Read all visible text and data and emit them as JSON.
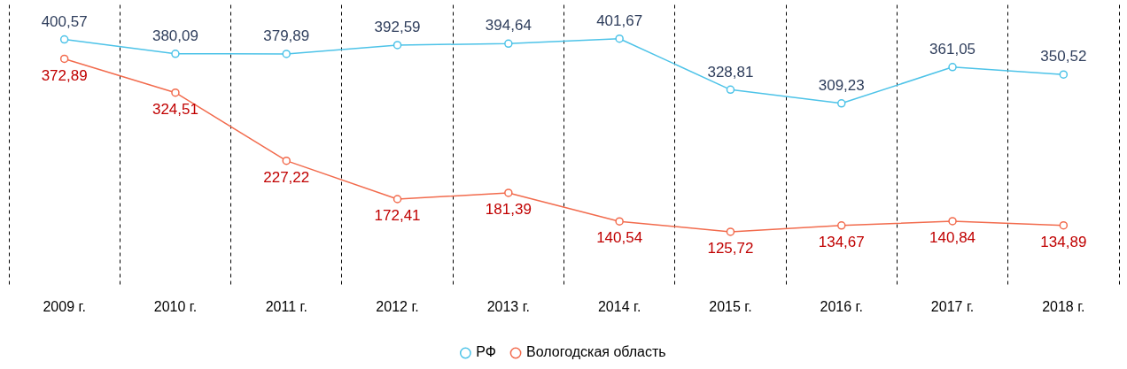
{
  "chart_data": {
    "type": "line",
    "categories": [
      "2009 г.",
      "2010 г.",
      "2011 г.",
      "2012 г.",
      "2013 г.",
      "2014 г.",
      "2015 г.",
      "2016 г.",
      "2017 г.",
      "2018 г."
    ],
    "series": [
      {
        "name": "РФ",
        "color": "#4dc3e8",
        "values": [
          400.57,
          380.09,
          379.89,
          392.59,
          394.64,
          401.67,
          328.81,
          309.23,
          361.05,
          350.52
        ],
        "value_labels": [
          "400,57",
          "380,09",
          "379,89",
          "392,59",
          "394,64",
          "401,67",
          "328,81",
          "309,23",
          "361,05",
          "350,52"
        ]
      },
      {
        "name": "Вологодская область",
        "color": "#f26b4d",
        "values": [
          372.89,
          324.51,
          227.22,
          172.41,
          181.39,
          140.54,
          125.72,
          134.67,
          140.84,
          134.89
        ],
        "value_labels": [
          "372,89",
          "324,51",
          "227,22",
          "172,41",
          "181,39",
          "140,54",
          "125,72",
          "134,67",
          "140,84",
          "134,89"
        ]
      }
    ],
    "grid": "x",
    "legend": "bottom",
    "marker": "circle",
    "line_style": "solid",
    "tick_labels": "x"
  }
}
